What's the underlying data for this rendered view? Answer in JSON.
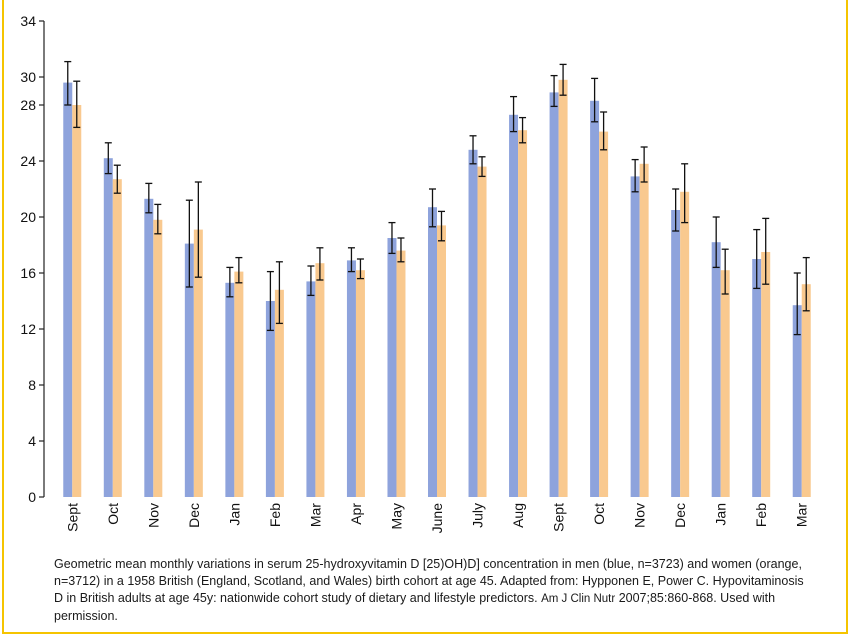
{
  "chart_data": {
    "type": "bar",
    "categories": [
      "Sept",
      "Oct",
      "Nov",
      "Dec",
      "Jan",
      "Feb",
      "Mar",
      "Apr",
      "May",
      "June",
      "July",
      "Aug",
      "Sept",
      "Oct",
      "Nov",
      "Dec",
      "Jan",
      "Feb",
      "Mar"
    ],
    "series": [
      {
        "color": "#8ea3dc",
        "values": [
          29.6,
          24.2,
          21.3,
          18.1,
          15.3,
          14.0,
          15.4,
          16.9,
          18.5,
          20.7,
          24.8,
          27.3,
          28.9,
          28.3,
          22.9,
          20.5,
          18.2,
          17.0,
          13.7
        ],
        "err_low": [
          28.0,
          23.1,
          20.3,
          15.0,
          14.3,
          11.9,
          14.4,
          16.1,
          17.4,
          19.3,
          23.8,
          26.1,
          27.9,
          26.8,
          21.8,
          19.0,
          16.4,
          14.9,
          11.6
        ],
        "err_high": [
          31.1,
          25.3,
          22.4,
          21.2,
          16.4,
          16.1,
          16.5,
          17.8,
          19.6,
          22.0,
          25.8,
          28.6,
          30.1,
          29.9,
          24.1,
          22.0,
          20.0,
          19.1,
          16.0
        ]
      },
      {
        "color": "#f9c98f",
        "values": [
          28.0,
          22.7,
          19.8,
          19.1,
          16.1,
          14.8,
          16.7,
          16.2,
          17.6,
          19.4,
          23.6,
          26.2,
          29.8,
          26.1,
          23.8,
          21.8,
          16.2,
          17.5,
          15.2
        ],
        "err_low": [
          26.4,
          21.7,
          18.8,
          15.7,
          15.3,
          12.4,
          15.5,
          15.6,
          16.8,
          18.3,
          22.9,
          25.3,
          28.7,
          24.8,
          22.5,
          19.6,
          14.5,
          15.2,
          13.3
        ],
        "err_high": [
          29.7,
          23.7,
          20.9,
          22.5,
          17.1,
          16.8,
          17.8,
          17.0,
          18.5,
          20.4,
          24.3,
          27.1,
          30.9,
          27.5,
          25.0,
          23.8,
          17.7,
          19.9,
          17.1
        ]
      }
    ],
    "ylim": [
      0,
      34
    ],
    "yticks": [
      "0",
      "4",
      "8",
      "12",
      "16",
      "20",
      "24",
      "28",
      "30",
      "34"
    ],
    "ytick_values": [
      0,
      4,
      8,
      12,
      16,
      20,
      24,
      28,
      30,
      34
    ],
    "legend": "none",
    "grid": false
  },
  "caption": {
    "text": "Geometric mean monthly variations in serum 25-hydroxyvitamin D [25)OH)D] concentration in men (blue, n=3723) and women (orange, n=3712) in a 1958 British (England, Scotland, and Wales) birth cohort at age 45.  Adapted from: Hypponen E, Power C. Hypovitaminosis D in British adults at age 45y: nationwide cohort study of dietary and lifestyle predictors.",
    "journal": "Am J Clin Nutr",
    "citation": "2007;85:860-868. Used with permission."
  }
}
